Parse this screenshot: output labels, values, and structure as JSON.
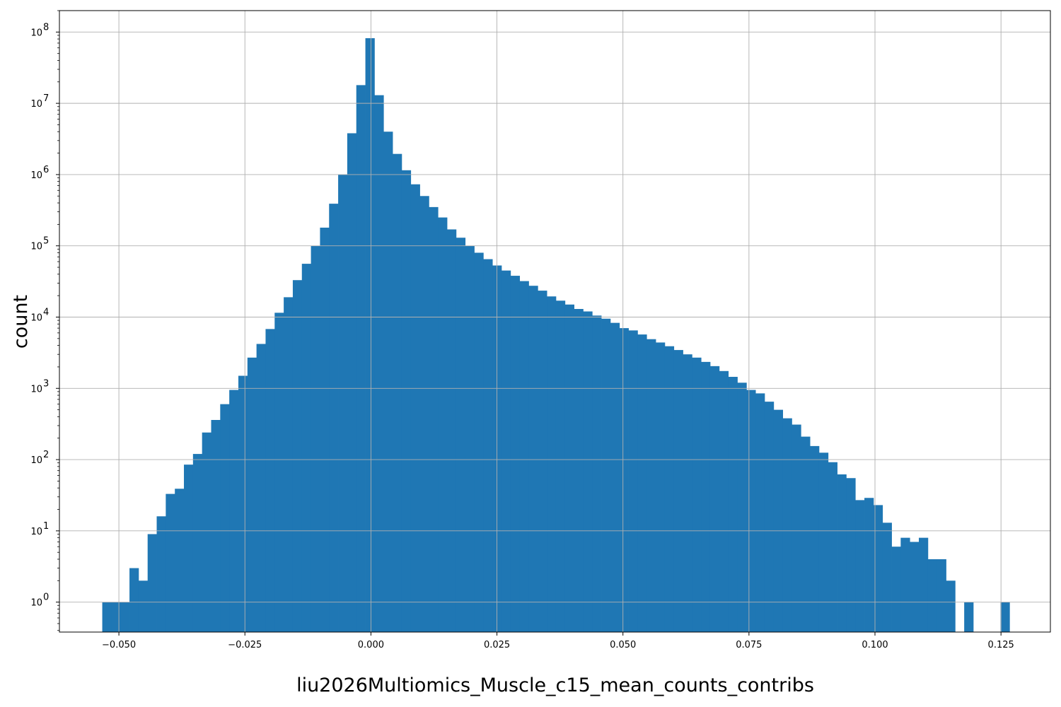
{
  "chart_data": {
    "type": "bar",
    "title": "",
    "xlabel": "liu2026Multiomics_Muscle_c15_mean_counts_contribs",
    "ylabel": "count",
    "yscale": "log",
    "grid": true,
    "legend": "none",
    "bar_color": "#1f77b4",
    "xlim": [
      -0.0618,
      0.1348
    ],
    "ylim": [
      0.38,
      200000000
    ],
    "x_ticks": [
      {
        "value": -0.05,
        "label": "−0.050"
      },
      {
        "value": -0.025,
        "label": "−0.025"
      },
      {
        "value": 0.0,
        "label": "0.000"
      },
      {
        "value": 0.025,
        "label": "0.025"
      },
      {
        "value": 0.05,
        "label": "0.050"
      },
      {
        "value": 0.075,
        "label": "0.075"
      },
      {
        "value": 0.1,
        "label": "0.100"
      },
      {
        "value": 0.125,
        "label": "0.125"
      }
    ],
    "y_ticks": [
      {
        "value": 1,
        "base": "10",
        "exp": "0"
      },
      {
        "value": 10,
        "base": "10",
        "exp": "1"
      },
      {
        "value": 100,
        "base": "10",
        "exp": "2"
      },
      {
        "value": 1000,
        "base": "10",
        "exp": "3"
      },
      {
        "value": 10000,
        "base": "10",
        "exp": "4"
      },
      {
        "value": 100000,
        "base": "10",
        "exp": "5"
      },
      {
        "value": 1000000,
        "base": "10",
        "exp": "6"
      },
      {
        "value": 10000000,
        "base": "10",
        "exp": "7"
      },
      {
        "value": 100000000,
        "base": "10",
        "exp": "8"
      }
    ],
    "bin_start": -0.0533,
    "bin_width": 0.0018,
    "counts": [
      1,
      1,
      1,
      3,
      2,
      9,
      16,
      33,
      39,
      85,
      120,
      240,
      360,
      600,
      950,
      1500,
      2700,
      4200,
      6800,
      11500,
      19000,
      33000,
      56000,
      100000,
      180000,
      390000,
      1000000,
      3800000,
      18000000,
      82000000,
      13000000,
      4000000,
      1950000,
      1150000,
      730000,
      500000,
      350000,
      250000,
      170000,
      130000,
      100000,
      80000,
      65000,
      53000,
      45000,
      38000,
      32000,
      27500,
      23500,
      19500,
      17000,
      15000,
      13000,
      12000,
      10500,
      9500,
      8300,
      7000,
      6500,
      5700,
      4900,
      4400,
      3900,
      3450,
      3000,
      2700,
      2350,
      2050,
      1750,
      1450,
      1200,
      950,
      850,
      650,
      500,
      380,
      310,
      210,
      155,
      125,
      92,
      62,
      55,
      27,
      29,
      23,
      13,
      6,
      8,
      7,
      8,
      4,
      4,
      2,
      0,
      1,
      0,
      0,
      0,
      1
    ]
  }
}
